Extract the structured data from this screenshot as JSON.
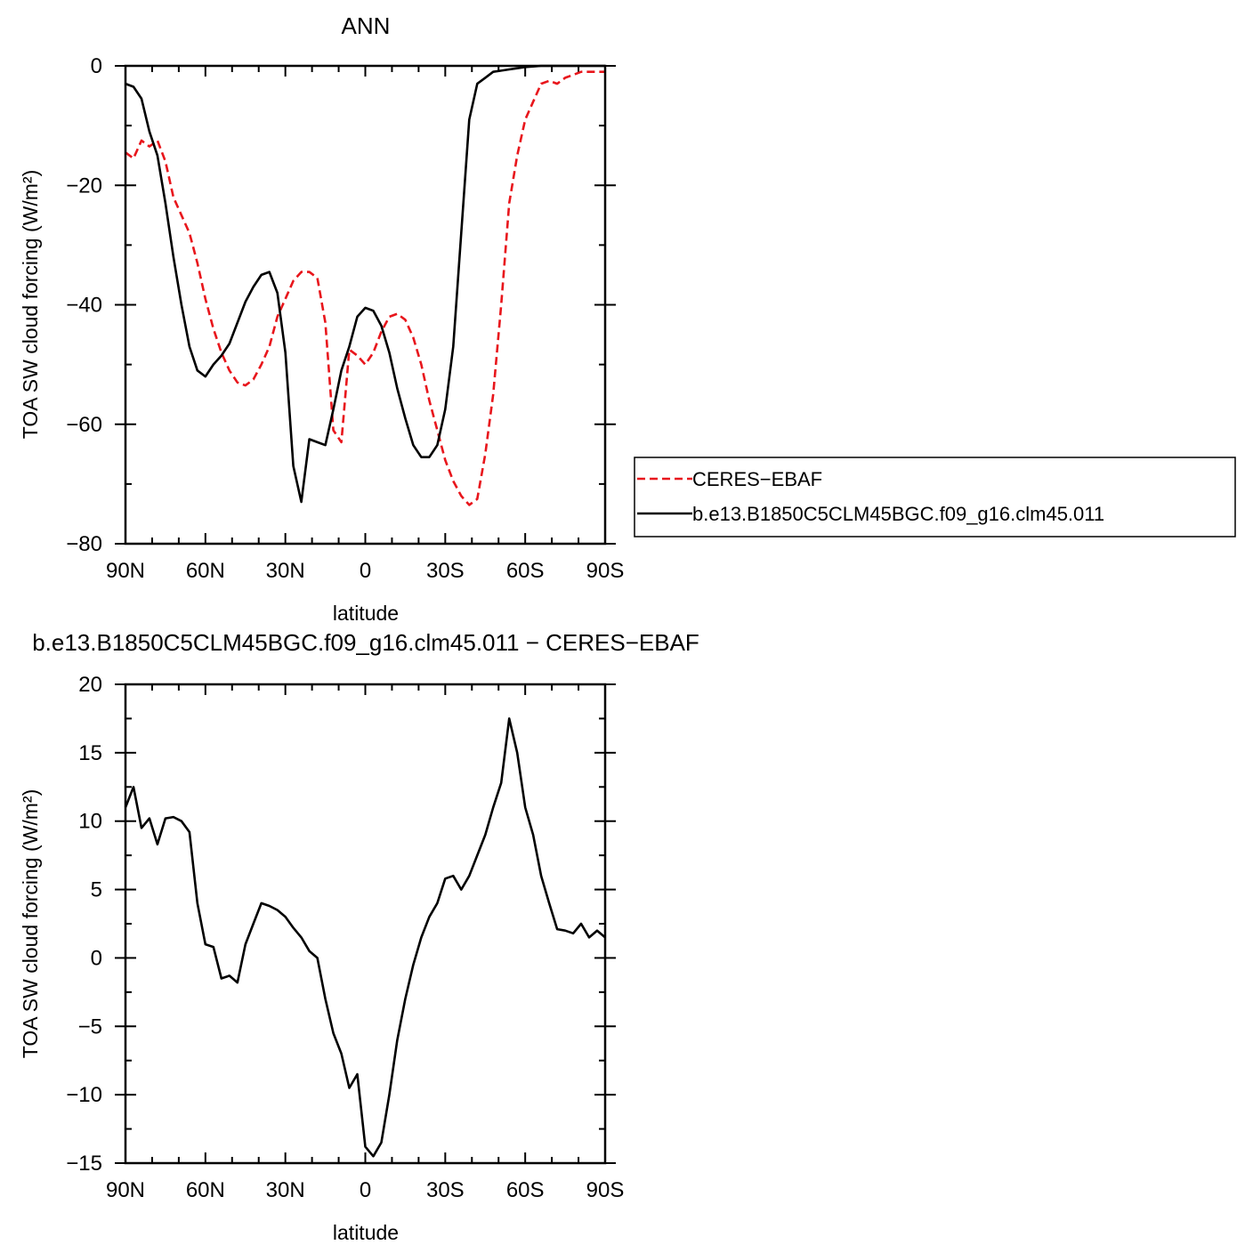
{
  "chart_data": [
    {
      "type": "line",
      "title": "ANN",
      "xlabel": "latitude",
      "ylabel": "TOA SW cloud forcing (W/m²)",
      "x_ticks": [
        "90N",
        "60N",
        "30N",
        "0",
        "30S",
        "60S",
        "90S"
      ],
      "x_tick_values": [
        90,
        60,
        30,
        0,
        -30,
        -60,
        -90
      ],
      "xlim": [
        90,
        -90
      ],
      "y_ticks": [
        "0",
        "−20",
        "−40",
        "−60",
        "−80"
      ],
      "y_tick_values": [
        0,
        -20,
        -40,
        -60,
        -80
      ],
      "ylim": [
        -80,
        0
      ],
      "legend_position": "right",
      "x": [
        90,
        87,
        84,
        81,
        78,
        75,
        72,
        69,
        66,
        63,
        60,
        57,
        54,
        51,
        48,
        45,
        42,
        39,
        36,
        33,
        30,
        27,
        24,
        21,
        18,
        15,
        12,
        9,
        6,
        3,
        0,
        -3,
        -6,
        -9,
        -12,
        -15,
        -18,
        -21,
        -24,
        -27,
        -30,
        -33,
        -36,
        -39,
        -42,
        -45,
        -48,
        -51,
        -54,
        -57,
        -60,
        -63,
        -66,
        -69,
        -72,
        -75,
        -78,
        -81,
        -84,
        -87,
        -90
      ],
      "series": [
        {
          "name": "CERES-EBAF",
          "color": "#e8161c",
          "dash": "dashed",
          "values": [
            -14.5,
            -15.5,
            -12.5,
            -13.5,
            -12.5,
            -16,
            -22,
            -25,
            -28,
            -33,
            -39,
            -44,
            -48,
            -51,
            -53,
            -53.5,
            -52.5,
            -50,
            -47,
            -42,
            -39,
            -36,
            -34.5,
            -34.5,
            -35.5,
            -43,
            -61,
            -63,
            -47.5,
            -48.5,
            -50,
            -48,
            -44.5,
            -42,
            -41.5,
            -42.5,
            -45.5,
            -50,
            -56,
            -61,
            -66,
            -69.5,
            -72,
            -73.5,
            -72.5,
            -65,
            -55,
            -40,
            -23,
            -15,
            -9,
            -6,
            -3,
            -2.5,
            -3,
            -2,
            -1.5,
            -1,
            -1,
            -1,
            -1
          ]
        },
        {
          "name": "b.e13.B1850C5CLM45BGC.f09_g16.clm45.011",
          "color": "#000000",
          "dash": "solid",
          "values": [
            -3,
            -3.5,
            -5.5,
            -11,
            -15,
            -23,
            -32,
            -40,
            -47,
            -51,
            -52,
            -50,
            -48.5,
            -46.5,
            -43,
            -39.5,
            -37,
            -35,
            -34.5,
            -38,
            -48,
            -67,
            -73,
            -62.5,
            -63,
            -63.5,
            -57.5,
            -51,
            -47,
            -42,
            -40.5,
            -41,
            -43.5,
            -48,
            -54,
            -59,
            -63.5,
            -65.5,
            -65.5,
            -63.5,
            -57.5,
            -47,
            -28,
            -9,
            -3,
            -2,
            -1,
            -0.8,
            -0.6,
            -0.4,
            -0.2,
            -0.1,
            0,
            0,
            0,
            0,
            0,
            0,
            0,
            0,
            0
          ]
        }
      ]
    },
    {
      "type": "line",
      "title": "b.e13.B1850C5CLM45BGC.f09_g16.clm45.011  −  CERES−EBAF",
      "xlabel": "latitude",
      "ylabel": "TOA SW cloud forcing (W/m²)",
      "x_ticks": [
        "90N",
        "60N",
        "30N",
        "0",
        "30S",
        "60S",
        "90S"
      ],
      "x_tick_values": [
        90,
        60,
        30,
        0,
        -30,
        -60,
        -90
      ],
      "xlim": [
        90,
        -90
      ],
      "y_ticks": [
        "20",
        "15",
        "10",
        "5",
        "0",
        "−5",
        "−10",
        "−15"
      ],
      "y_tick_values": [
        20,
        15,
        10,
        5,
        0,
        -5,
        -10,
        -15
      ],
      "ylim": [
        -15,
        20
      ],
      "series": [
        {
          "name": "",
          "color": "#000000",
          "dash": "solid",
          "values": [
            11,
            12.5,
            9.5,
            10.2,
            8.3,
            10.2,
            10.3,
            10,
            9.2,
            4,
            1,
            0.8,
            -1.5,
            -1.3,
            -1.8,
            1,
            2.5,
            4,
            3.8,
            3.5,
            3,
            2.2,
            1.5,
            0.5,
            0,
            -3,
            -5.5,
            -7,
            -9.5,
            -8.5,
            -13.8,
            -14.5,
            -13.5,
            -10,
            -6,
            -3,
            -0.5,
            1.5,
            3,
            4,
            5.8,
            6,
            5,
            6,
            7.5,
            9,
            11,
            12.8,
            17.5,
            15,
            11,
            9,
            6,
            4,
            2.1,
            2,
            1.8,
            2.5,
            1.5,
            2,
            1.5
          ]
        }
      ]
    }
  ],
  "legend": {
    "entries": [
      "CERES−EBAF",
      "b.e13.B1850C5CLM45BGC.f09_g16.clm45.011"
    ]
  }
}
